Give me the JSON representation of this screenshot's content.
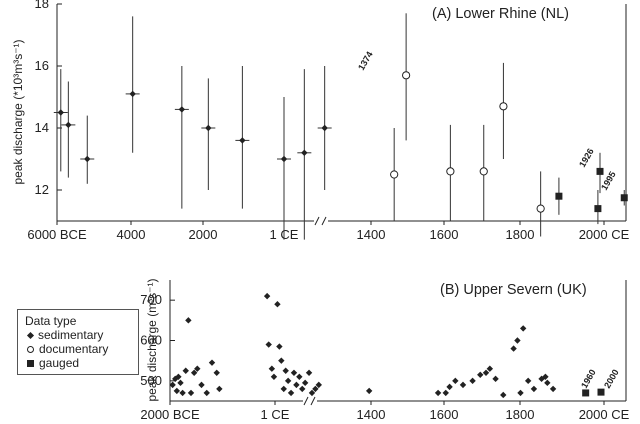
{
  "chart_data": [
    {
      "type": "scatter",
      "title": "(A) Lower Rhine (NL)",
      "ylabel": "peak discharge (*10³m³s⁻¹)",
      "ylim": [
        11,
        18
      ],
      "yticks": [
        12,
        14,
        16,
        18
      ],
      "xticks": [
        "6000 BCE",
        "4000",
        "2000",
        "1 CE",
        "1400",
        "1600",
        "1800",
        "2000 CE"
      ],
      "axis_break": "//",
      "prehistoric_range": [
        "6000 BCE",
        "1 CE"
      ],
      "historic_range": [
        1200,
        2000
      ],
      "series": [
        {
          "name": "sedimentary",
          "marker": "diamond",
          "points": [
            {
              "x": -5900,
              "y": 14.5,
              "lo": 12.6,
              "hi": 15.9
            },
            {
              "x": -5700,
              "y": 14.1,
              "lo": 12.4,
              "hi": 15.5
            },
            {
              "x": -5200,
              "y": 13.0,
              "lo": 12.2,
              "hi": 14.4
            },
            {
              "x": -4000,
              "y": 15.1,
              "lo": 13.2,
              "hi": 17.6
            },
            {
              "x": -2700,
              "y": 14.6,
              "lo": 11.4,
              "hi": 16.0
            },
            {
              "x": -2000,
              "y": 14.0,
              "lo": 12.0,
              "hi": 15.6
            },
            {
              "x": -1100,
              "y": 13.6,
              "lo": 11.4,
              "hi": 16.0
            },
            {
              "x": 0,
              "y": 13.0,
              "lo": 10.4,
              "hi": 15.0
            },
            {
              "x": 400,
              "y": 13.2,
              "lo": 10.4,
              "hi": 15.9
            },
            {
              "x": 800,
              "y": 14.0,
              "lo": 12.0,
              "hi": 16.0
            }
          ]
        },
        {
          "name": "documentary",
          "marker": "circle",
          "points": [
            {
              "x": 1340,
              "y": 12.5,
              "lo": 11.0,
              "hi": 14.0
            },
            {
              "x": 1374,
              "y": 15.7,
              "lo": 13.6,
              "hi": 17.7
            },
            {
              "x": 1500,
              "y": 12.6,
              "lo": 11.0,
              "hi": 14.1
            },
            {
              "x": 1595,
              "y": 12.6,
              "lo": 11.0,
              "hi": 14.1
            },
            {
              "x": 1651,
              "y": 14.7,
              "lo": 13.0,
              "hi": 16.1
            },
            {
              "x": 1757,
              "y": 11.4,
              "lo": 10.5,
              "hi": 12.6
            }
          ]
        },
        {
          "name": "gauged",
          "marker": "square",
          "points": [
            {
              "x": 1809,
              "y": 11.8,
              "lo": 11.2,
              "hi": 12.4
            },
            {
              "x": 1920,
              "y": 11.4,
              "lo": 10.9,
              "hi": 12.0
            },
            {
              "x": 1926,
              "y": 12.6,
              "lo": 11.9,
              "hi": 13.2
            },
            {
              "x": 1995,
              "y": 11.75,
              "lo": 11.5,
              "hi": 12.0
            }
          ]
        }
      ],
      "annotations": [
        "1374",
        "1926",
        "1995"
      ]
    },
    {
      "type": "scatter",
      "title": "(B) Upper Severn (UK)",
      "ylabel": "peak discharge (m³s⁻¹)",
      "ylim": [
        450,
        750
      ],
      "yticks": [
        500,
        600,
        700
      ],
      "xticks": [
        "2000 BCE",
        "1 CE",
        "1400",
        "1600",
        "1800",
        "2000 CE"
      ],
      "axis_break": "//",
      "series": [
        {
          "name": "sedimentary",
          "marker": "diamond",
          "points": [
            {
              "x": -1950,
              "y": 490
            },
            {
              "x": -1900,
              "y": 505
            },
            {
              "x": -1870,
              "y": 475
            },
            {
              "x": -1840,
              "y": 510
            },
            {
              "x": -1800,
              "y": 495
            },
            {
              "x": -1760,
              "y": 470
            },
            {
              "x": -1700,
              "y": 525
            },
            {
              "x": -1650,
              "y": 650
            },
            {
              "x": -1600,
              "y": 470
            },
            {
              "x": -1540,
              "y": 520
            },
            {
              "x": -1480,
              "y": 530
            },
            {
              "x": -1400,
              "y": 490
            },
            {
              "x": -1300,
              "y": 470
            },
            {
              "x": -1200,
              "y": 545
            },
            {
              "x": -1110,
              "y": 520
            },
            {
              "x": -1060,
              "y": 480
            },
            {
              "x": -150,
              "y": 710
            },
            {
              "x": -120,
              "y": 590
            },
            {
              "x": -60,
              "y": 530
            },
            {
              "x": -20,
              "y": 510
            },
            {
              "x": 50,
              "y": 690
            },
            {
              "x": 90,
              "y": 585
            },
            {
              "x": 130,
              "y": 550
            },
            {
              "x": 180,
              "y": 480
            },
            {
              "x": 220,
              "y": 525
            },
            {
              "x": 270,
              "y": 500
            },
            {
              "x": 330,
              "y": 470
            },
            {
              "x": 390,
              "y": 520
            },
            {
              "x": 440,
              "y": 490
            },
            {
              "x": 500,
              "y": 510
            },
            {
              "x": 560,
              "y": 480
            },
            {
              "x": 620,
              "y": 495
            },
            {
              "x": 700,
              "y": 520
            },
            {
              "x": 760,
              "y": 470
            },
            {
              "x": 830,
              "y": 480
            },
            {
              "x": 900,
              "y": 490
            },
            {
              "x": 1383,
              "y": 475
            },
            {
              "x": 1575,
              "y": 470
            },
            {
              "x": 1595,
              "y": 470
            },
            {
              "x": 1605,
              "y": 485
            },
            {
              "x": 1620,
              "y": 500
            },
            {
              "x": 1640,
              "y": 490
            },
            {
              "x": 1665,
              "y": 500
            },
            {
              "x": 1685,
              "y": 515
            },
            {
              "x": 1700,
              "y": 520
            },
            {
              "x": 1710,
              "y": 530
            },
            {
              "x": 1725,
              "y": 505
            },
            {
              "x": 1745,
              "y": 465
            },
            {
              "x": 1772,
              "y": 580
            },
            {
              "x": 1782,
              "y": 600
            },
            {
              "x": 1790,
              "y": 470
            },
            {
              "x": 1797,
              "y": 630
            },
            {
              "x": 1810,
              "y": 500
            },
            {
              "x": 1825,
              "y": 480
            },
            {
              "x": 1845,
              "y": 505
            },
            {
              "x": 1855,
              "y": 510
            },
            {
              "x": 1860,
              "y": 495
            },
            {
              "x": 1875,
              "y": 480
            }
          ]
        },
        {
          "name": "gauged",
          "marker": "square",
          "points": [
            {
              "x": 1960,
              "y": 470
            },
            {
              "x": 2000,
              "y": 472
            }
          ]
        }
      ],
      "annotations": [
        "1960",
        "2000"
      ]
    }
  ],
  "legend": {
    "title": "Data type",
    "items": [
      {
        "marker": "diamond",
        "label": "sedimentary"
      },
      {
        "marker": "circle",
        "label": "documentary"
      },
      {
        "marker": "square",
        "label": "gauged"
      }
    ]
  }
}
